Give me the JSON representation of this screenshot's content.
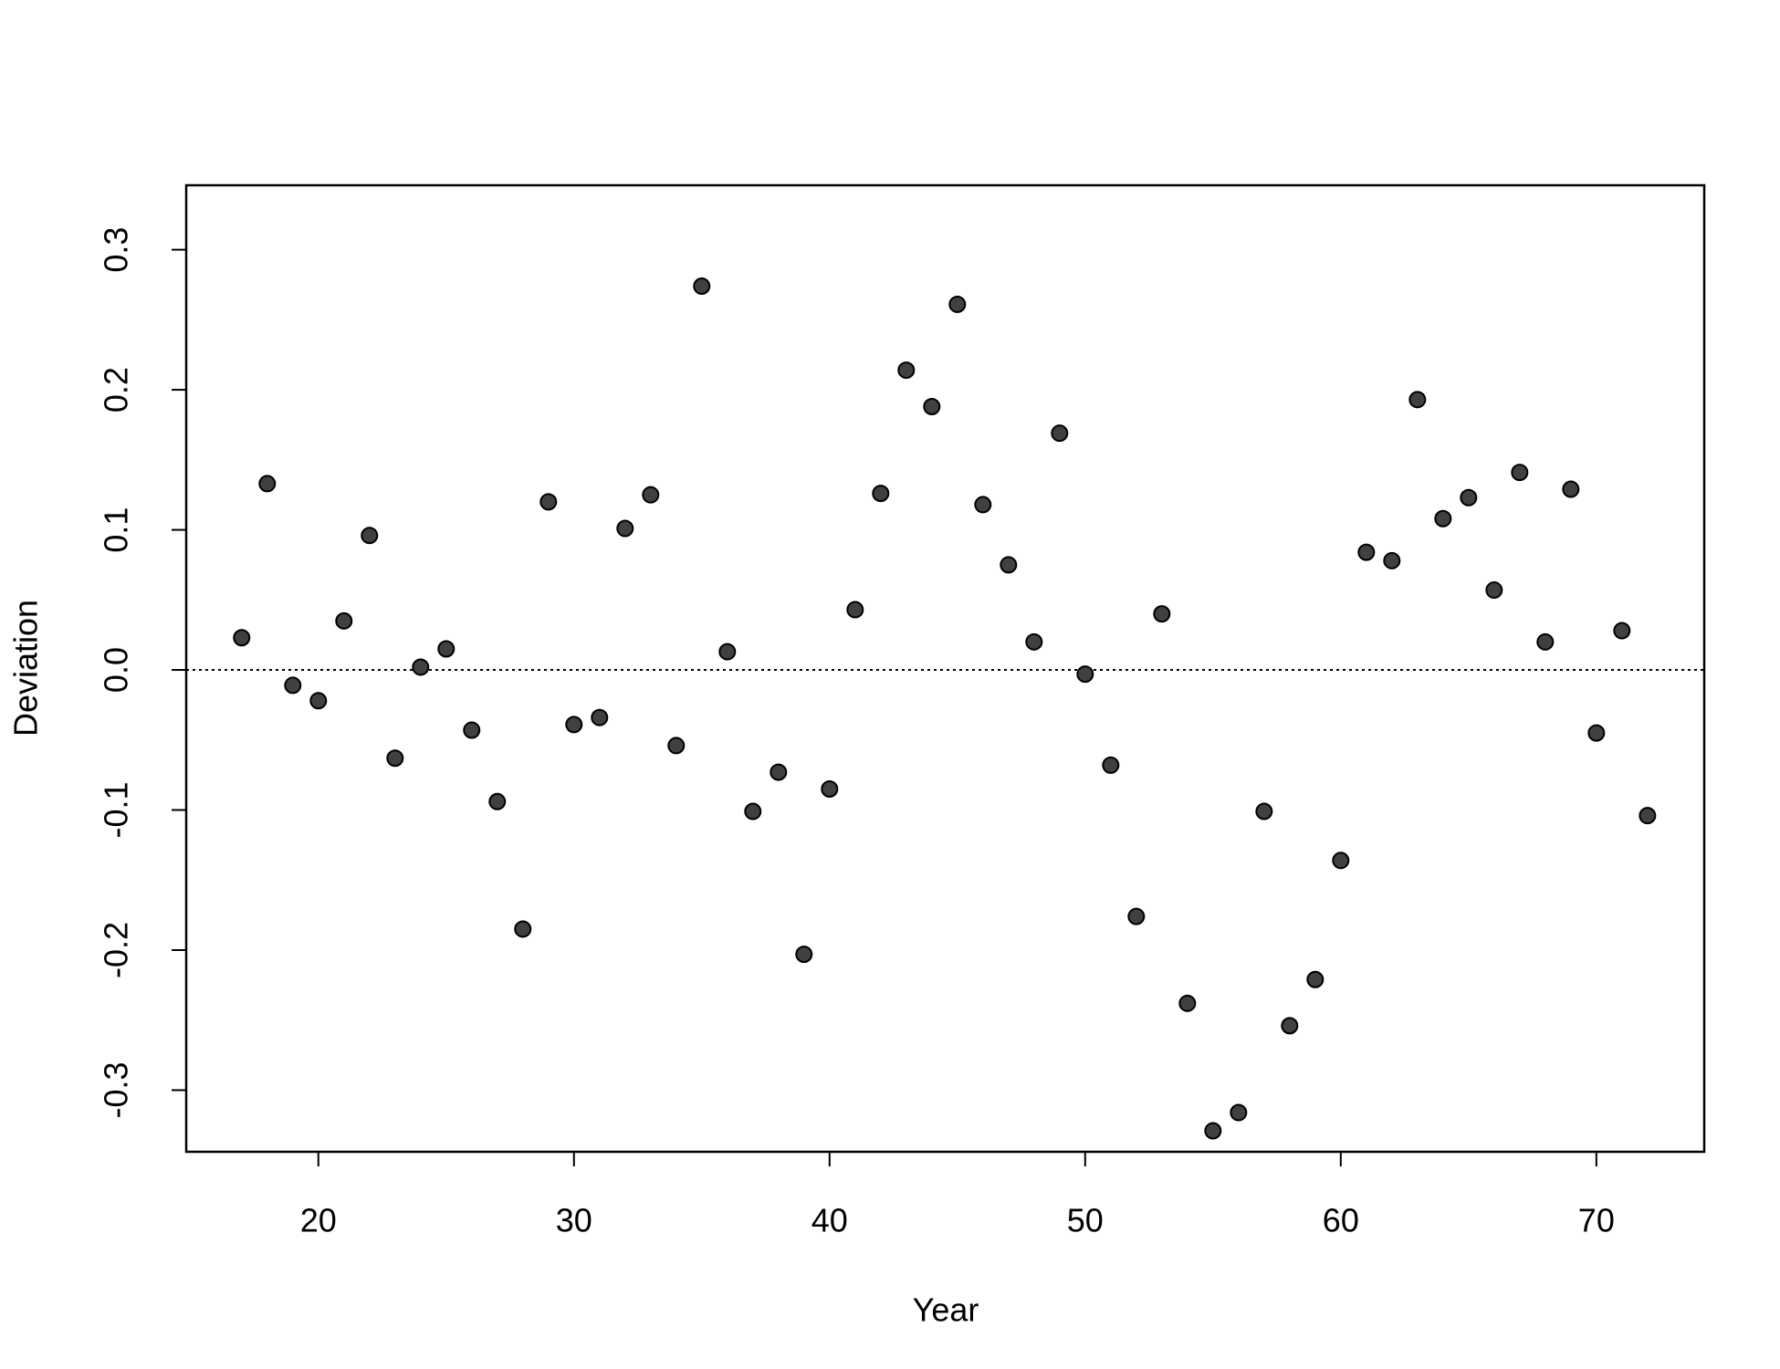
{
  "chart_data": {
    "type": "scatter",
    "x_label": "Year",
    "y_label": "Deviation",
    "x": [
      17,
      18,
      19,
      20,
      21,
      22,
      23,
      24,
      25,
      26,
      27,
      28,
      29,
      30,
      31,
      32,
      33,
      34,
      35,
      36,
      37,
      38,
      39,
      40,
      41,
      42,
      43,
      44,
      45,
      46,
      47,
      48,
      49,
      50,
      51,
      52,
      53,
      54,
      55,
      56,
      57,
      58,
      59,
      60,
      61,
      62,
      63,
      64,
      65,
      66,
      67,
      68,
      69,
      70,
      71,
      72
    ],
    "values": [
      0.023,
      0.133,
      -0.011,
      -0.022,
      0.035,
      0.096,
      -0.063,
      0.002,
      0.015,
      -0.043,
      -0.094,
      -0.185,
      0.12,
      -0.039,
      -0.034,
      0.101,
      0.125,
      -0.054,
      0.274,
      0.013,
      -0.101,
      -0.073,
      -0.203,
      -0.085,
      0.043,
      0.126,
      0.214,
      0.188,
      0.261,
      0.118,
      0.075,
      0.02,
      0.169,
      -0.003,
      -0.068,
      -0.176,
      0.04,
      -0.238,
      -0.329,
      -0.316,
      -0.101,
      -0.254,
      -0.221,
      -0.136,
      0.084,
      0.078,
      0.193,
      0.108,
      0.123,
      0.057,
      0.141,
      0.02,
      0.129,
      -0.045,
      0.028,
      -0.104
    ],
    "color": "#404040",
    "xlim": [
      14.83,
      74.22
    ],
    "xticks": [
      20,
      30,
      40,
      50,
      60,
      70
    ],
    "ylim": [
      -0.344,
      0.346
    ],
    "yticks": [
      -0.3,
      -0.2,
      -0.1,
      {
        "value": 0,
        "label": "0.0"
      },
      0.1,
      0.2,
      0.3
    ],
    "hline": 0
  }
}
